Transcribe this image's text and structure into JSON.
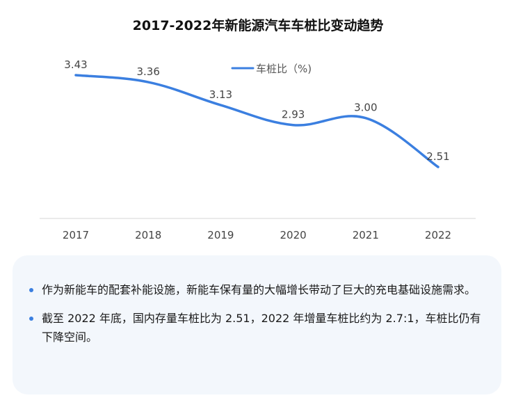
{
  "chart_data": {
    "type": "line",
    "title": "2017-2022年新能源汽车车桩比变动趋势",
    "categories": [
      "2017",
      "2018",
      "2019",
      "2020",
      "2021",
      "2022"
    ],
    "series": [
      {
        "name": "车桩比（%)",
        "values": [
          3.43,
          3.36,
          3.13,
          2.93,
          3.0,
          2.51
        ],
        "labels": [
          "3.43",
          "3.36",
          "3.13",
          "2.93",
          "3.00",
          "2.51"
        ]
      }
    ],
    "ylim": [
      2.0,
      3.55
    ],
    "smooth": true,
    "legend": "top-center",
    "grid": false,
    "color": "#3b7fe0"
  },
  "notes": [
    "作为新能车的配套补能设施，新能车保有量的大幅增长带动了巨大的充电基础设施需求。",
    "截至 2022 年底，国内存量车桩比为 2.51，2022 年增量车桩比约为 2.7:1，车桩比仍有下降空间。"
  ],
  "colors": {
    "line": "#3b7fe0",
    "card": "#f3f7fc",
    "axis": "#d4d4d4"
  }
}
